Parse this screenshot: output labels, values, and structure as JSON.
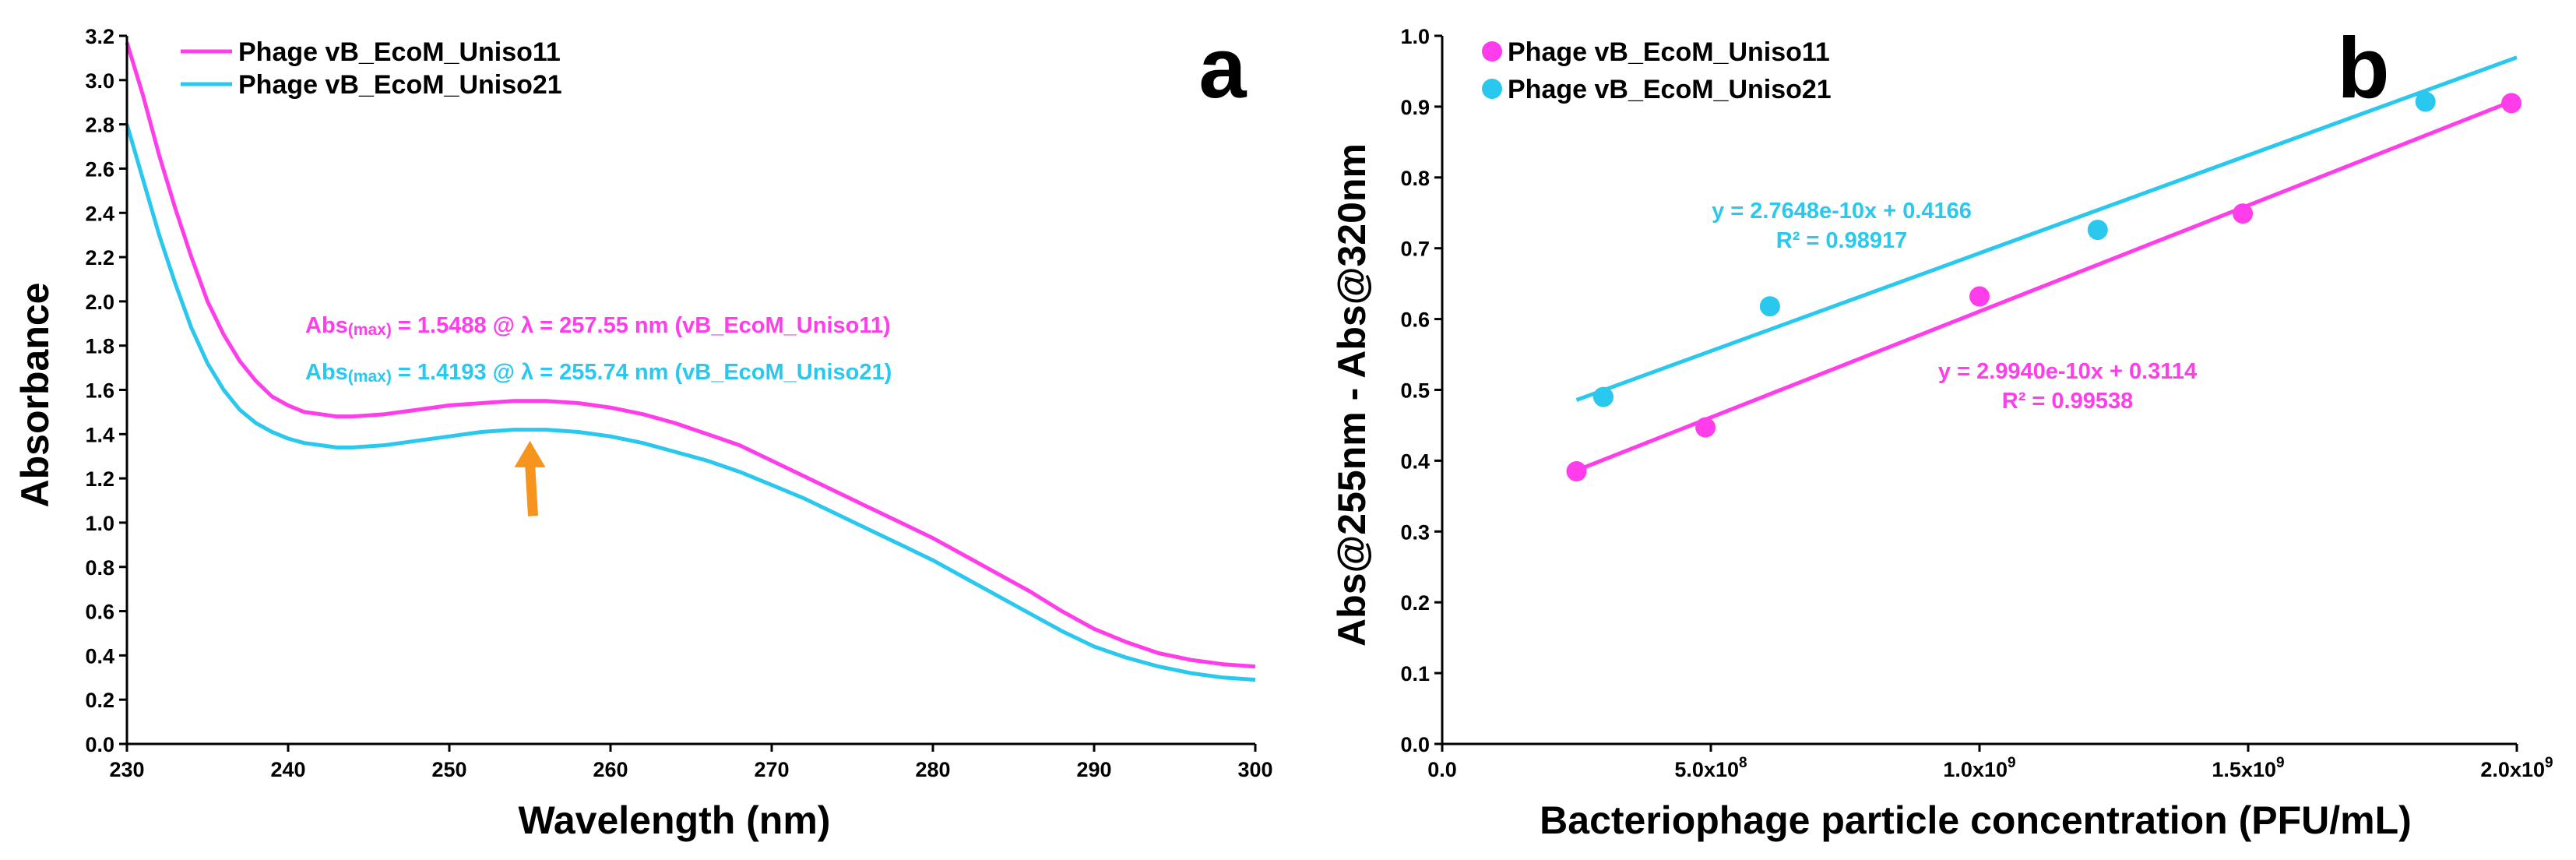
{
  "colors": {
    "uniso11": "#ff3dea",
    "uniso21": "#2ac8ee",
    "arrow": "#f7941d"
  },
  "chart_data": [
    {
      "panel": "a",
      "type": "line",
      "xlabel": "Wavelength (nm)",
      "ylabel": "Absorbance",
      "xlim": [
        230,
        300
      ],
      "ylim": [
        0,
        3.2
      ],
      "grid": false,
      "legend_position": "top-left",
      "x_ticks": [
        "230",
        "240",
        "250",
        "260",
        "270",
        "280",
        "290",
        "300"
      ],
      "y_ticks": [
        "0.0",
        "0.2",
        "0.4",
        "0.6",
        "0.8",
        "1.0",
        "1.2",
        "1.4",
        "1.6",
        "1.8",
        "2.0",
        "2.2",
        "2.4",
        "2.6",
        "2.8",
        "3.0",
        "3.2"
      ],
      "series": [
        {
          "name": "Phage vB_EcoM_Uniso11",
          "x": [
            230,
            231,
            232,
            233,
            234,
            235,
            236,
            237,
            238,
            239,
            240,
            241,
            242,
            243,
            244,
            246,
            248,
            250,
            252,
            254,
            256,
            258,
            260,
            262,
            264,
            266,
            268,
            270,
            272,
            274,
            276,
            278,
            280,
            282,
            284,
            286,
            288,
            290,
            292,
            294,
            296,
            298,
            300
          ],
          "y": [
            3.17,
            2.93,
            2.66,
            2.42,
            2.2,
            2.0,
            1.85,
            1.73,
            1.64,
            1.57,
            1.53,
            1.5,
            1.49,
            1.48,
            1.48,
            1.49,
            1.51,
            1.53,
            1.54,
            1.55,
            1.55,
            1.54,
            1.52,
            1.49,
            1.45,
            1.4,
            1.35,
            1.28,
            1.21,
            1.14,
            1.07,
            1.0,
            0.93,
            0.85,
            0.77,
            0.69,
            0.6,
            0.52,
            0.46,
            0.41,
            0.38,
            0.36,
            0.35
          ]
        },
        {
          "name": "Phage vB_EcoM_Uniso21",
          "x": [
            230,
            231,
            232,
            233,
            234,
            235,
            236,
            237,
            238,
            239,
            240,
            241,
            242,
            243,
            244,
            246,
            248,
            250,
            252,
            254,
            256,
            258,
            260,
            262,
            264,
            266,
            268,
            270,
            272,
            274,
            276,
            278,
            280,
            282,
            284,
            286,
            288,
            290,
            292,
            294,
            296,
            298,
            300
          ],
          "y": [
            2.8,
            2.55,
            2.3,
            2.08,
            1.88,
            1.72,
            1.6,
            1.51,
            1.45,
            1.41,
            1.38,
            1.36,
            1.35,
            1.34,
            1.34,
            1.35,
            1.37,
            1.39,
            1.41,
            1.42,
            1.42,
            1.41,
            1.39,
            1.36,
            1.32,
            1.28,
            1.23,
            1.17,
            1.11,
            1.04,
            0.97,
            0.9,
            0.83,
            0.75,
            0.67,
            0.59,
            0.51,
            0.44,
            0.39,
            0.35,
            0.32,
            0.3,
            0.29
          ]
        }
      ],
      "annotations": [
        {
          "prefix": "Abs",
          "sub": "(max)",
          "text": " = 1.5488 @ λ = 257.55 nm (vB_EcoM_Uniso11)",
          "series": 0
        },
        {
          "prefix": "Abs",
          "sub": "(max)",
          "text": " = 1.4193 @ λ = 255.74 nm (vB_EcoM_Uniso21)",
          "series": 1
        }
      ],
      "arrow": {
        "x": 255,
        "y_from": 1.03,
        "y_to": 1.37
      }
    },
    {
      "panel": "b",
      "type": "scatter",
      "xlabel": "Bacteriophage particle concentration (PFU/mL)",
      "ylabel": "Abs@255nm - Abs@320nm",
      "xlim": [
        0,
        2000000000
      ],
      "ylim": [
        0,
        1.0
      ],
      "grid": false,
      "legend_position": "top-left",
      "x_ticks": [
        {
          "value": 0,
          "base": "0.0",
          "exp": ""
        },
        {
          "value": 500000000,
          "base": "5.0x10",
          "exp": "8"
        },
        {
          "value": 1000000000,
          "base": "1.0x10",
          "exp": "9"
        },
        {
          "value": 1500000000,
          "base": "1.5x10",
          "exp": "9"
        },
        {
          "value": 2000000000,
          "base": "2.0x10",
          "exp": "9"
        }
      ],
      "y_ticks": [
        "0.0",
        "0.1",
        "0.2",
        "0.3",
        "0.4",
        "0.5",
        "0.6",
        "0.7",
        "0.8",
        "0.9",
        "1.0"
      ],
      "series": [
        {
          "name": "Phage vB_EcoM_Uniso11",
          "x": [
            250000000,
            490000000,
            1000000000,
            1490000000,
            1990000000
          ],
          "y": [
            0.385,
            0.447,
            0.632,
            0.749,
            0.905
          ],
          "trendline": {
            "slope": 2.994e-10,
            "intercept": 0.3114,
            "x_range": [
              250000000,
              1990000000
            ]
          },
          "equation": "y = 2.9940e-10x + 0.3114",
          "r2": "R² = 0.99538"
        },
        {
          "name": "Phage vB_EcoM_Uniso21",
          "x": [
            300000000,
            610000000,
            1220000000,
            1830000000
          ],
          "y": [
            0.49,
            0.618,
            0.726,
            0.907
          ],
          "trendline": {
            "slope": 2.7648e-10,
            "intercept": 0.4166,
            "x_range": [
              250000000,
              2000000000
            ]
          },
          "equation": "y = 2.7648e-10x + 0.4166",
          "r2": "R² = 0.98917"
        }
      ]
    }
  ]
}
